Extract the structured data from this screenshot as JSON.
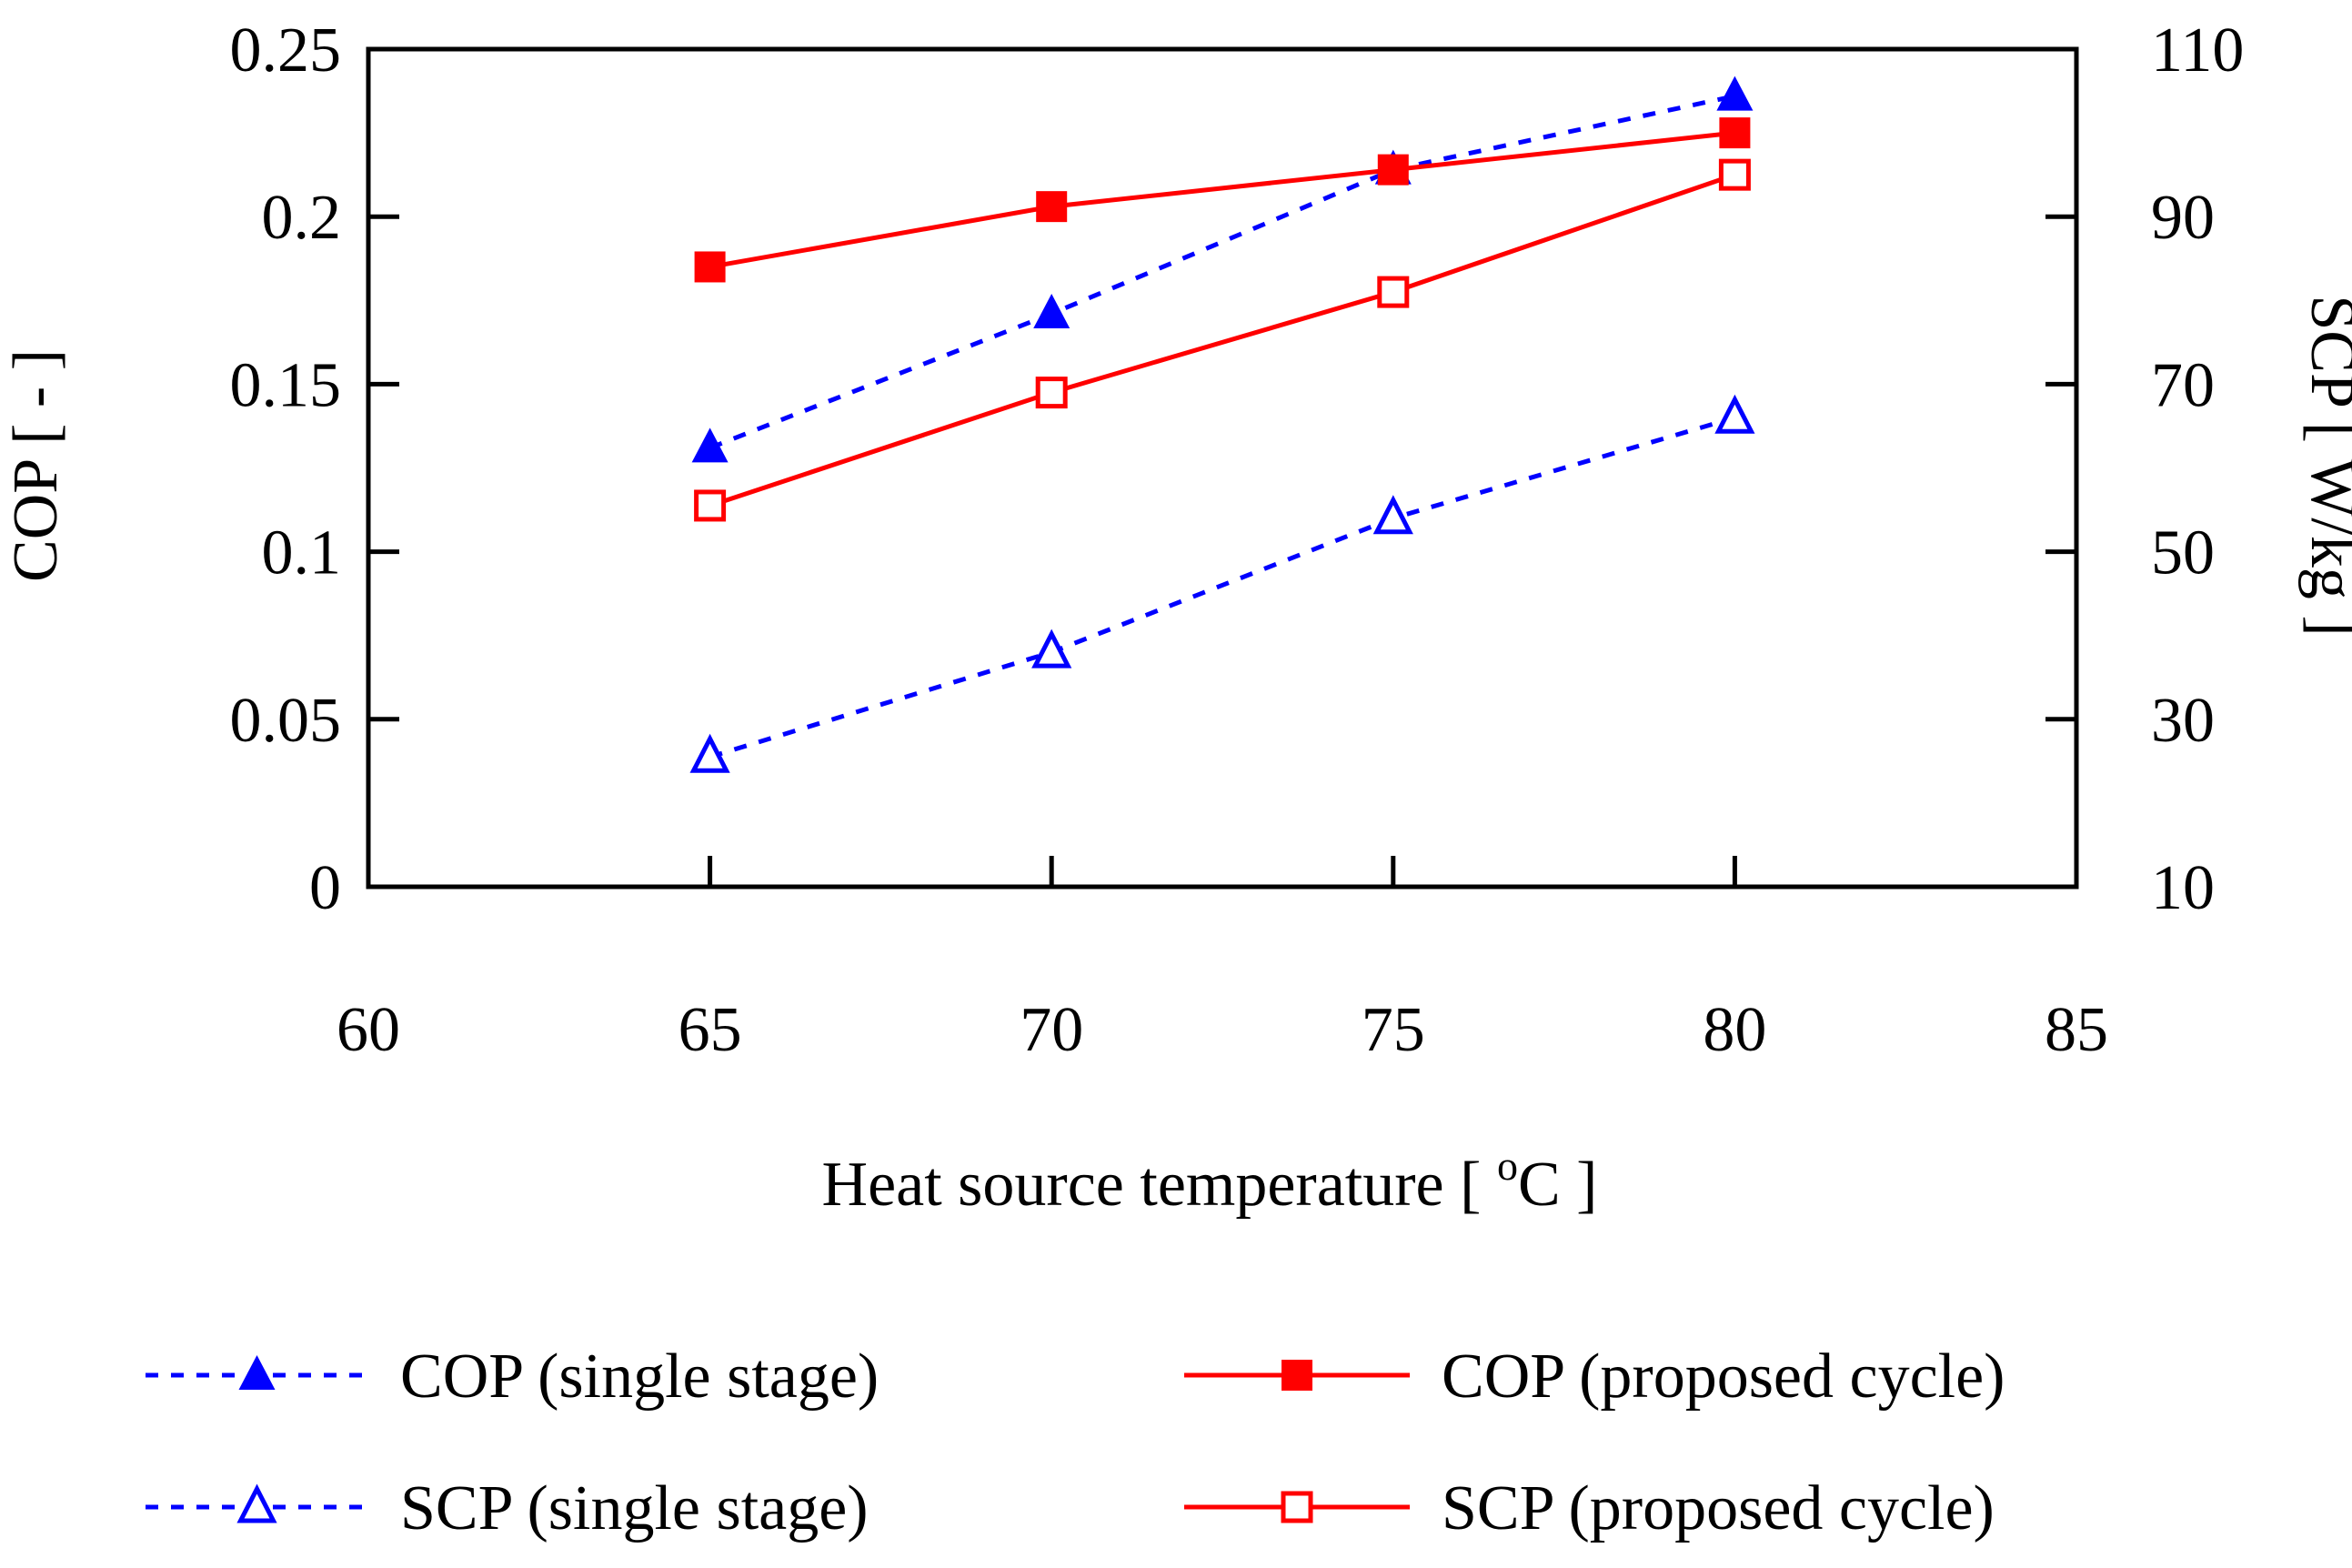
{
  "chart_data": {
    "type": "line",
    "title": "",
    "xlabel": "Heat source temperature [ °C ]",
    "xlabel_parts": {
      "pre": "Heat source temperature [ ",
      "sup": "o",
      "post": "C ]"
    },
    "ylabel_left": "COP [ - ]",
    "ylabel_right": "SCP [ W/kg ]",
    "xlim": [
      60,
      85
    ],
    "ylim_left": [
      0,
      0.25
    ],
    "ylim_right": [
      10,
      110
    ],
    "xticks": [
      60,
      65,
      70,
      75,
      80,
      85
    ],
    "xtick_labels": [
      "60",
      "65",
      "70",
      "75",
      "80",
      "85"
    ],
    "yticks_left": [
      0,
      0.05,
      0.1,
      0.15,
      0.2,
      0.25
    ],
    "ytick_labels_left": [
      "0",
      "0.05",
      "0.1",
      "0.15",
      "0.2",
      "0.25"
    ],
    "yticks_right": [
      10,
      30,
      50,
      70,
      90,
      110
    ],
    "ytick_labels_right": [
      "10",
      "30",
      "50",
      "70",
      "90",
      "110"
    ],
    "grid": false,
    "legend_position": "bottom",
    "series": [
      {
        "name": "COP (single stage)",
        "axis": "left",
        "x": [
          65,
          70,
          75,
          80
        ],
        "y": [
          0.131,
          0.171,
          0.214,
          0.236
        ],
        "color": "#0000ff",
        "line": "dotted",
        "marker": "triangle-filled"
      },
      {
        "name": "COP (proposed cycle)",
        "axis": "left",
        "x": [
          65,
          70,
          75,
          80
        ],
        "y": [
          0.185,
          0.203,
          0.214,
          0.225
        ],
        "color": "#ff0000",
        "line": "solid",
        "marker": "square-filled"
      },
      {
        "name": "SCP (single stage)",
        "axis": "right",
        "x": [
          65,
          70,
          75,
          80
        ],
        "y": [
          25.5,
          38,
          54,
          66
        ],
        "color": "#0000ff",
        "line": "dotted",
        "marker": "triangle-open"
      },
      {
        "name": "SCP (proposed cycle)",
        "axis": "right",
        "x": [
          65,
          70,
          75,
          80
        ],
        "y": [
          55.5,
          69,
          81,
          95
        ],
        "color": "#ff0000",
        "line": "solid",
        "marker": "square-open"
      }
    ]
  }
}
